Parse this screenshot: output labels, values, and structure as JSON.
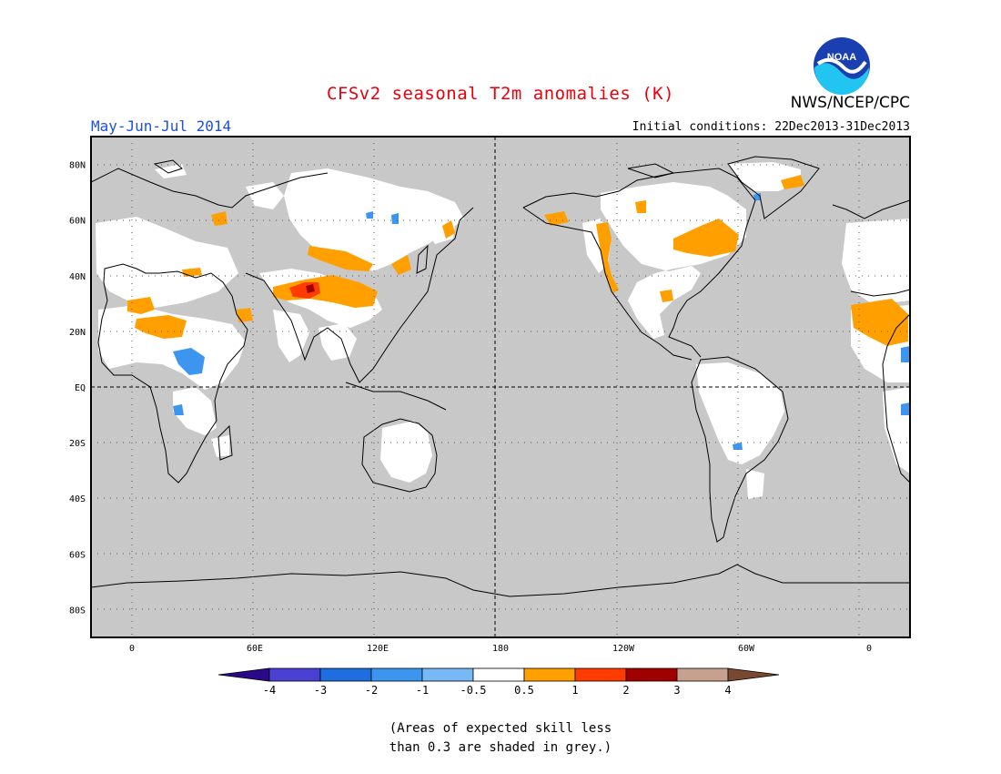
{
  "header": {
    "title": "CFSv2 seasonal T2m anomalies (K)",
    "period": "May-Jun-Jul 2014",
    "initial_conditions": "Initial conditions: 22Dec2013-31Dec2013",
    "agency": "NWS/NCEP/CPC",
    "logo_text": "NOAA"
  },
  "map": {
    "lat_labels": [
      "80N",
      "60N",
      "40N",
      "20N",
      "EQ",
      "20S",
      "40S",
      "60S",
      "80S"
    ],
    "lon_labels": [
      "0",
      "60E",
      "120E",
      "180",
      "120W",
      "60W",
      "0"
    ],
    "lat_values": [
      80,
      60,
      40,
      20,
      0,
      -20,
      -40,
      -60,
      -80
    ],
    "lon_values": [
      0,
      60,
      120,
      180,
      240,
      300,
      360
    ],
    "lon_range": [
      -20,
      380
    ],
    "lat_range": [
      -90,
      90
    ],
    "ocean_color": "#c8c8c8",
    "land_color": "#ffffff",
    "gridlines": "dotted"
  },
  "legend": {
    "labels": [
      "-4",
      "-3",
      "-2",
      "-1",
      "-0.5",
      "0.5",
      "1",
      "2",
      "3",
      "4"
    ],
    "colors": [
      "#2b0a8a",
      "#4a40d2",
      "#1e6ee0",
      "#3c96f0",
      "#78b9f5",
      "#ffffff",
      "#ffa000",
      "#ff3c00",
      "#a00000",
      "#c8a090",
      "#784830"
    ]
  },
  "note": {
    "line1": "(Areas of expected skill less",
    "line2": "than 0.3 are shaded in grey.)"
  }
}
